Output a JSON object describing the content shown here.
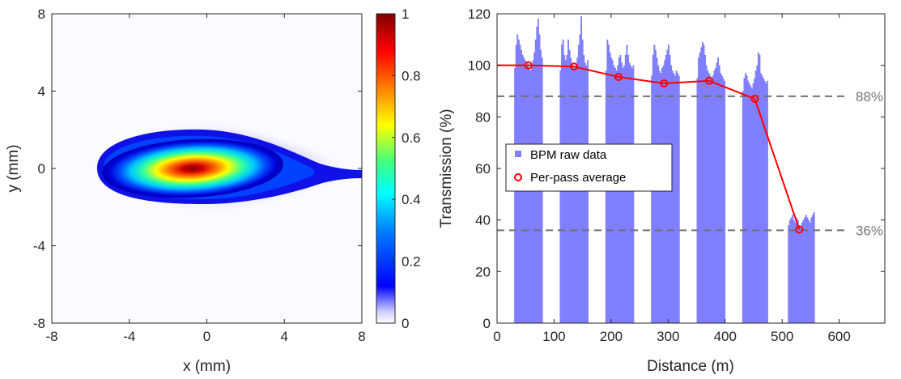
{
  "colors": {
    "bar": "#7f7fff",
    "line": "#ff0000",
    "ref": "#707070",
    "axis": "#262626"
  },
  "chart_data": [
    {
      "type": "heatmap",
      "xlabel": "x (mm)",
      "ylabel": "y (mm)",
      "xlim": [
        -8,
        8
      ],
      "ylim": [
        -8,
        8
      ],
      "xticks": [
        "-8",
        "-4",
        "0",
        "4",
        "8"
      ],
      "yticks": [
        "-8",
        "-4",
        "0",
        "4",
        "8"
      ],
      "colorbar": {
        "min": 0,
        "max": 1,
        "colormap": "jet",
        "ticks": [
          "0",
          "0.2",
          "0.4",
          "0.6",
          "0.8",
          "1"
        ]
      },
      "beam": {
        "peak_x": -0.8,
        "peak_y": 0.0,
        "peak_value": 1.0,
        "shape": "asymmetric teardrop, tail extends toward +x, slight tilt",
        "left_extent_x": -5.5,
        "right_tail_x": 8,
        "half_height_y": 1.8
      }
    },
    {
      "type": "bar",
      "xlabel": "Distance (m)",
      "ylabel": "Transmission (%)",
      "xlim": [
        0,
        680
      ],
      "ylim": [
        0,
        120
      ],
      "xticks": [
        "0",
        "100",
        "200",
        "300",
        "400",
        "500",
        "600"
      ],
      "yticks": [
        "0",
        "20",
        "40",
        "60",
        "80",
        "100",
        "120"
      ],
      "legend": {
        "position": "middle-left",
        "entries": [
          "BPM raw data",
          "Per-pass average"
        ]
      },
      "bpm_groups": [
        {
          "x_start": 30,
          "x_end": 80,
          "levels": [
            99,
            108,
            112,
            110,
            108,
            106,
            104,
            103,
            102,
            100,
            101,
            99,
            98,
            100,
            102,
            105,
            110,
            115,
            118,
            112,
            106,
            103
          ]
        },
        {
          "x_start": 110,
          "x_end": 160,
          "levels": [
            98,
            108,
            110,
            104,
            102,
            104,
            110,
            106,
            103,
            101,
            100,
            99,
            100,
            103,
            108,
            112,
            119,
            110,
            104,
            101,
            100,
            102
          ]
        },
        {
          "x_start": 190,
          "x_end": 240,
          "levels": [
            98,
            110,
            108,
            105,
            103,
            102,
            100,
            99,
            98,
            100,
            103,
            104,
            101,
            99,
            100,
            104,
            108,
            104,
            101,
            100,
            99,
            100
          ]
        },
        {
          "x_start": 270,
          "x_end": 320,
          "levels": [
            96,
            104,
            108,
            106,
            103,
            100,
            98,
            97,
            99,
            100,
            102,
            104,
            106,
            108,
            104,
            100,
            98,
            97,
            96,
            98,
            97,
            96
          ]
        },
        {
          "x_start": 350,
          "x_end": 400,
          "levels": [
            95,
            103,
            105,
            107,
            109,
            108,
            104,
            100,
            98,
            97,
            96,
            95,
            96,
            98,
            99,
            101,
            103,
            100,
            97,
            96,
            95,
            94
          ]
        },
        {
          "x_start": 430,
          "x_end": 475,
          "levels": [
            90,
            95,
            97,
            96,
            94,
            93,
            92,
            91,
            93,
            95,
            98,
            100,
            105,
            104,
            97,
            96,
            95,
            94,
            93,
            94
          ]
        },
        {
          "x_start": 510,
          "x_end": 557,
          "levels": [
            38,
            40,
            41,
            42,
            40,
            39,
            41,
            40,
            38,
            37,
            39,
            40,
            41,
            42,
            41,
            40,
            39,
            41,
            42,
            43
          ]
        }
      ],
      "average_series": {
        "name": "Per-pass average",
        "x": [
          0,
          55,
          135,
          213,
          293,
          372,
          452,
          530
        ],
        "y": [
          100,
          100,
          99.5,
          95.5,
          93,
          94,
          87,
          36.3
        ]
      },
      "reference_lines": [
        {
          "y": 88,
          "label": "88%"
        },
        {
          "y": 36,
          "label": "36%"
        }
      ]
    }
  ]
}
